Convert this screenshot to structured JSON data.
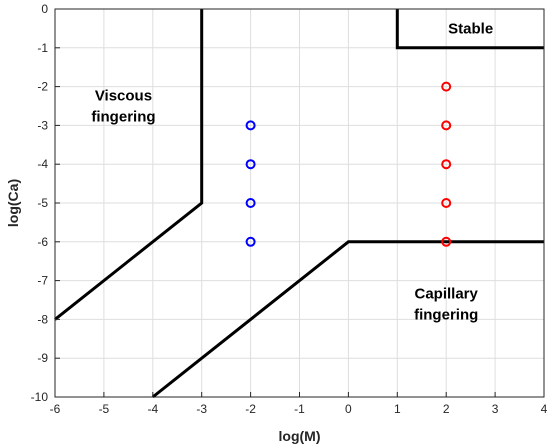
{
  "chart_data": {
    "type": "scatter",
    "title": "",
    "xlabel": "log(M)",
    "ylabel": "log(Ca)",
    "xlim": [
      -6,
      4
    ],
    "ylim": [
      -10,
      0
    ],
    "xticks": [
      "-6",
      "-5",
      "-4",
      "-3",
      "-2",
      "-1",
      "0",
      "1",
      "2",
      "3",
      "4"
    ],
    "yticks": [
      "0",
      "-1",
      "-2",
      "-3",
      "-4",
      "-5",
      "-6",
      "-7",
      "-8",
      "-9",
      "-10"
    ],
    "grid": true,
    "boundaries": [
      {
        "points": [
          [
            -6,
            -8
          ],
          [
            -3,
            -5
          ],
          [
            -3,
            0
          ]
        ],
        "color": "#000000"
      },
      {
        "points": [
          [
            -4,
            -10
          ],
          [
            0,
            -6
          ],
          [
            4,
            -6
          ]
        ],
        "color": "#000000"
      },
      {
        "points": [
          [
            1,
            0
          ],
          [
            1,
            -1
          ],
          [
            4,
            -1
          ]
        ],
        "color": "#000000"
      }
    ],
    "series": [
      {
        "color": "#0000ff",
        "x": [
          -2,
          -2,
          -2,
          -2
        ],
        "y": [
          -3,
          -4,
          -5,
          -6
        ]
      },
      {
        "color": "#ff0000",
        "x": [
          2,
          2,
          2,
          2,
          2
        ],
        "y": [
          -2,
          -3,
          -4,
          -5,
          -6
        ]
      }
    ],
    "regions": [
      {
        "lines": [
          "Stable"
        ],
        "x": 2.5,
        "y": -0.5
      },
      {
        "lines": [
          "Viscous",
          "fingering"
        ],
        "x": -4.6,
        "y": -2.5
      },
      {
        "lines": [
          "Capillary",
          "fingering"
        ],
        "x": 2.0,
        "y": -7.6
      }
    ]
  }
}
